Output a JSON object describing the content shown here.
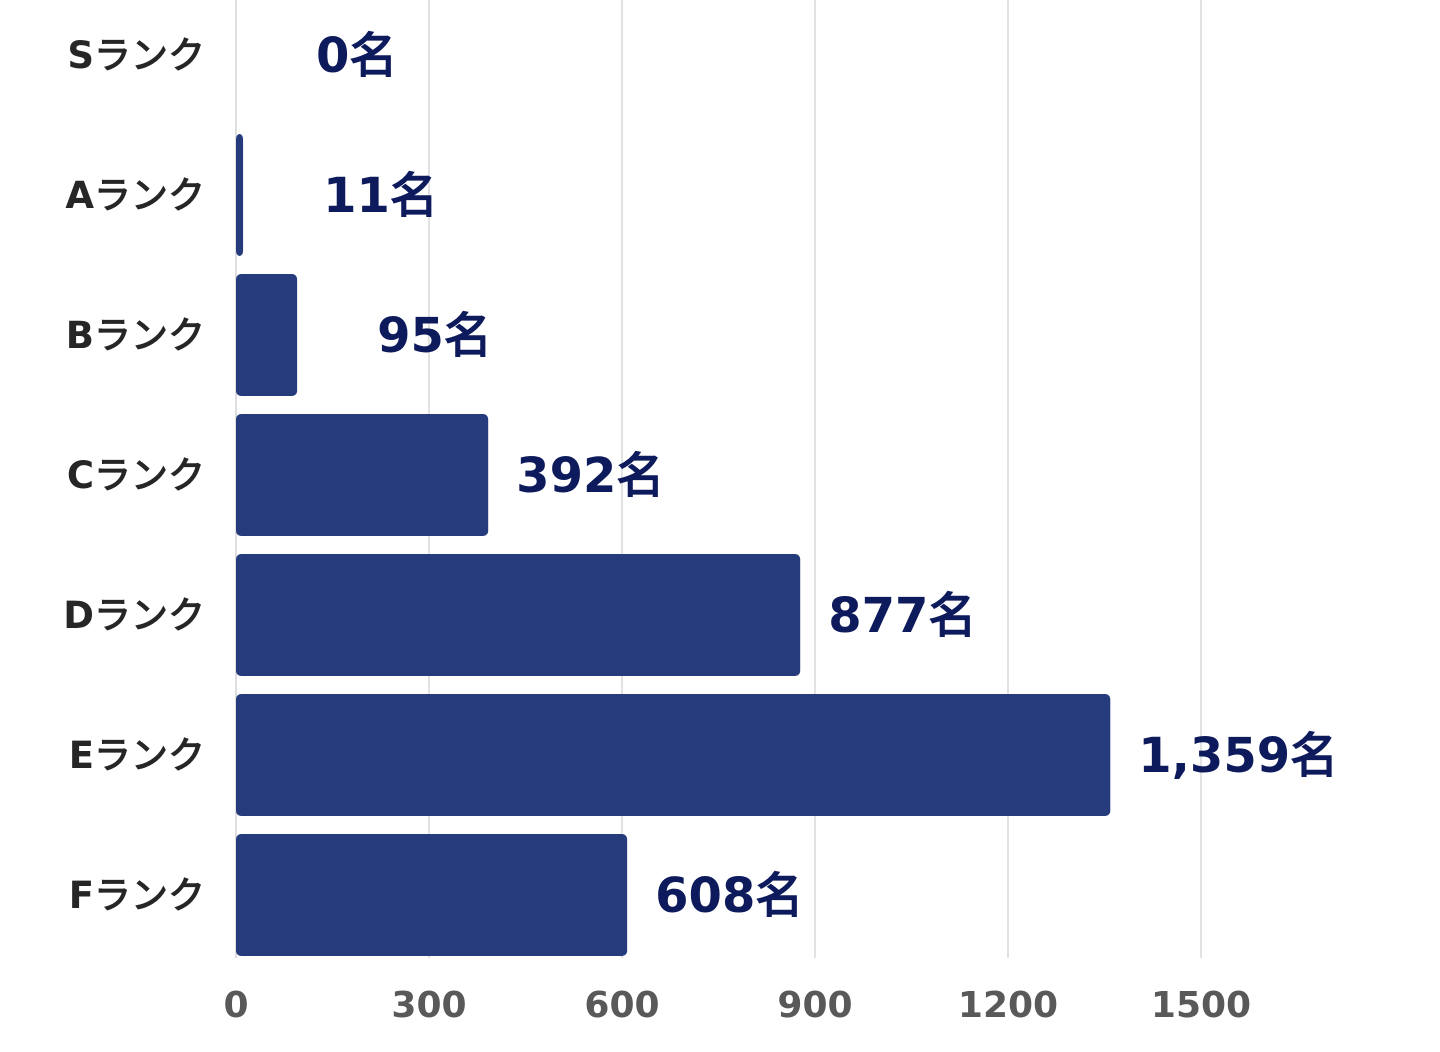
{
  "chart_data": {
    "type": "bar",
    "orientation": "horizontal",
    "categories": [
      "Sランク",
      "Aランク",
      "Bランク",
      "Cランク",
      "Dランク",
      "Eランク",
      "Fランク"
    ],
    "values": [
      0,
      11,
      95,
      392,
      877,
      1359,
      608
    ],
    "data_labels": [
      "0名",
      "11名",
      "95名",
      "392名",
      "877名",
      "1,359名",
      "608名"
    ],
    "x_ticks": [
      "0",
      "300",
      "600",
      "900",
      "1200",
      "1500"
    ],
    "xlim": [
      0,
      1800
    ],
    "title": "",
    "xlabel": "",
    "ylabel": "",
    "grid": true,
    "legend": "none",
    "colors": {
      "bar": "#263b7c",
      "data_label": "#0d1a5c",
      "category_label": "#262626",
      "tick_label": "#595959",
      "grid": "#d9d9d9"
    }
  }
}
